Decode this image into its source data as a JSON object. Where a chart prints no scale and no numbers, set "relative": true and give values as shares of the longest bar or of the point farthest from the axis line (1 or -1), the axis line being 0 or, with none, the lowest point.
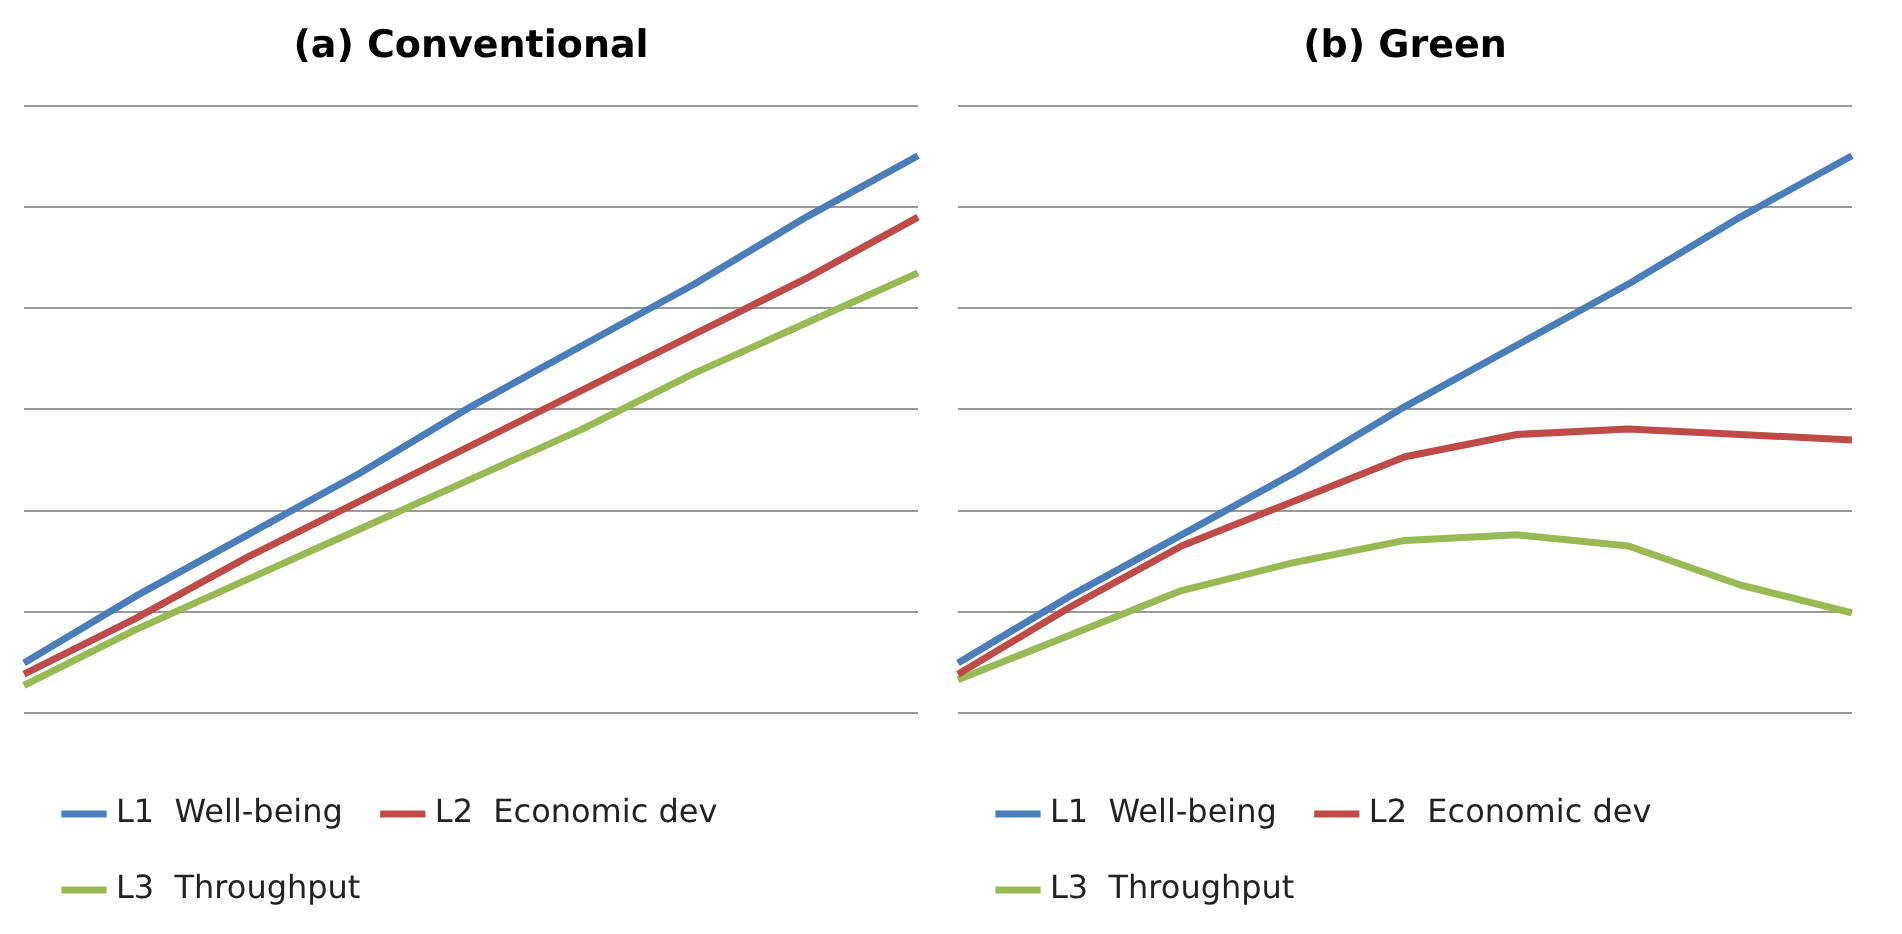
{
  "chart_data": [
    {
      "type": "line",
      "title": "(a) Conventional",
      "relative": true,
      "grid": "y",
      "legend": "bottom",
      "marker": "none",
      "line_style": "solid",
      "categories": [
        null,
        null,
        null,
        null,
        null,
        null,
        null,
        null,
        null
      ],
      "series": [
        {
          "name": "L1  Well-being",
          "color": "#4a7ebb",
          "values": [
            0.09,
            0.21,
            0.32,
            0.43,
            0.55,
            0.66,
            0.77,
            0.89,
            1.0
          ]
        },
        {
          "name": "L2  Economic dev",
          "color": "#be4b48",
          "values": [
            0.07,
            0.17,
            0.28,
            0.38,
            0.48,
            0.58,
            0.68,
            0.78,
            0.89
          ]
        },
        {
          "name": "L3  Throughput",
          "color": "#98b954",
          "values": [
            0.05,
            0.15,
            0.24,
            0.33,
            0.42,
            0.51,
            0.61,
            0.7,
            0.79
          ]
        }
      ]
    },
    {
      "type": "line",
      "title": "(b) Green",
      "relative": true,
      "grid": "y",
      "legend": "bottom",
      "marker": "none",
      "line_style": "solid",
      "categories": [
        null,
        null,
        null,
        null,
        null,
        null,
        null,
        null,
        null
      ],
      "series": [
        {
          "name": "L1  Well-being",
          "color": "#4a7ebb",
          "values": [
            0.09,
            0.21,
            0.32,
            0.43,
            0.55,
            0.66,
            0.77,
            0.89,
            1.0
          ]
        },
        {
          "name": "L2  Economic dev",
          "color": "#be4b48",
          "values": [
            0.07,
            0.19,
            0.3,
            0.38,
            0.46,
            0.5,
            0.51,
            0.5,
            0.49
          ]
        },
        {
          "name": "L3  Throughput",
          "color": "#98b954",
          "values": [
            0.06,
            0.14,
            0.22,
            0.27,
            0.31,
            0.32,
            0.3,
            0.23,
            0.18
          ]
        }
      ]
    }
  ]
}
